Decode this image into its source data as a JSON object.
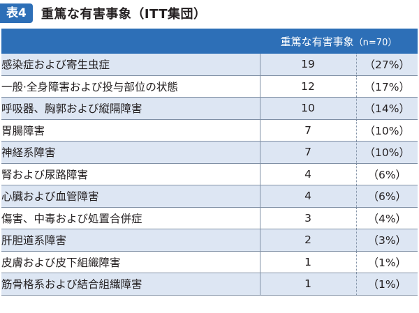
{
  "title": {
    "badge": "表4",
    "text": "重篤な有害事象（ITT集団）"
  },
  "table": {
    "header": {
      "column": "重篤な有害事象",
      "n": "（n=70）"
    },
    "rows": [
      {
        "name": "感染症および寄生虫症",
        "count": "19",
        "pct": "（27%）"
      },
      {
        "name": "一般·全身障害および投与部位の状態",
        "count": "12",
        "pct": "（17%）"
      },
      {
        "name": "呼吸器、胸郭および縦隔障害",
        "count": "10",
        "pct": "（14%）"
      },
      {
        "name": "胃腸障害",
        "count": "7",
        "pct": "（10%）"
      },
      {
        "name": "神経系障害",
        "count": "7",
        "pct": "（10%）"
      },
      {
        "name": "腎および尿路障害",
        "count": "4",
        "pct": "（6%）"
      },
      {
        "name": "心臓および血管障害",
        "count": "4",
        "pct": "（6%）"
      },
      {
        "name": "傷害、中毒および処置合併症",
        "count": "3",
        "pct": "（4%）"
      },
      {
        "name": "肝胆道系障害",
        "count": "2",
        "pct": "（3%）"
      },
      {
        "name": "皮膚および皮下組織障害",
        "count": "1",
        "pct": "（1%）"
      },
      {
        "name": "筋骨格系および結合組織障害",
        "count": "1",
        "pct": "（1%）"
      }
    ]
  },
  "colors": {
    "accent": "#2d6fb7",
    "row_stripe": "#dde6f3"
  }
}
